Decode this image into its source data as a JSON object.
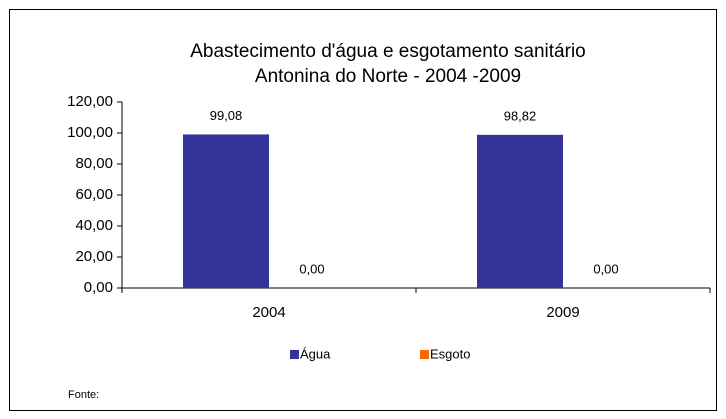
{
  "chart_data": {
    "type": "bar",
    "title": "Abastecimento d'água e esgotamento sanitário",
    "subtitle": "Antonina do Norte - 2004 -2009",
    "categories": [
      "2004",
      "2009"
    ],
    "series": [
      {
        "name": "Água",
        "color": "#333399",
        "values": [
          99.08,
          98.82
        ],
        "value_labels": [
          "99,08",
          "98,82"
        ]
      },
      {
        "name": "Esgoto",
        "color": "#ff6600",
        "values": [
          0,
          0
        ],
        "value_labels": [
          "0,00",
          "0,00"
        ]
      }
    ],
    "ylim": [
      0,
      120
    ],
    "yticks": [
      {
        "value": 0,
        "label": "0,00"
      },
      {
        "value": 20,
        "label": "20,00"
      },
      {
        "value": 40,
        "label": "40,00"
      },
      {
        "value": 60,
        "label": "60,00"
      },
      {
        "value": 80,
        "label": "80,00"
      },
      {
        "value": 100,
        "label": "100,00"
      },
      {
        "value": 120,
        "label": "120,00"
      }
    ],
    "grid": false,
    "legend": "bottom",
    "annotation": "Fonte:"
  }
}
